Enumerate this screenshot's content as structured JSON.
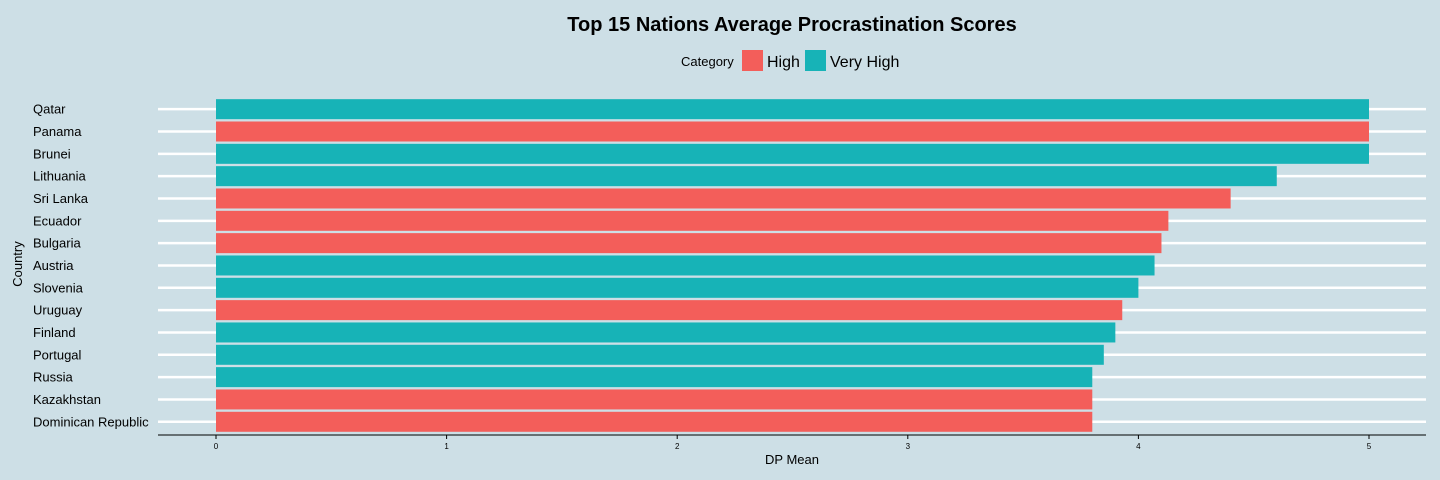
{
  "chart_data": {
    "type": "bar",
    "orientation": "horizontal",
    "title": "Top 15 Nations Average Procrastination Scores",
    "xlabel": "DP Mean",
    "ylabel": "Country",
    "xlim": [
      0,
      5.25
    ],
    "xticks": [
      0,
      1,
      2,
      3,
      4,
      5
    ],
    "legend": {
      "title": "Category",
      "position": "top",
      "entries": [
        {
          "label": "High",
          "color": "#f35e5a"
        },
        {
          "label": "Very High",
          "color": "#17b3b7"
        }
      ]
    },
    "categories": [
      "Qatar",
      "Panama",
      "Brunei",
      "Lithuania",
      "Sri Lanka",
      "Ecuador",
      "Bulgaria",
      "Austria",
      "Slovenia",
      "Uruguay",
      "Finland",
      "Portugal",
      "Russia",
      "Kazakhstan",
      "Dominican Republic"
    ],
    "values": [
      5.0,
      5.0,
      5.0,
      4.6,
      4.4,
      4.13,
      4.1,
      4.07,
      4.0,
      3.93,
      3.9,
      3.85,
      3.8,
      3.8,
      3.8
    ],
    "category_group": [
      "Very High",
      "High",
      "Very High",
      "Very High",
      "High",
      "High",
      "High",
      "Very High",
      "Very High",
      "High",
      "Very High",
      "Very High",
      "Very High",
      "High",
      "High"
    ],
    "grid": {
      "major_y": true,
      "major_x": false
    }
  }
}
